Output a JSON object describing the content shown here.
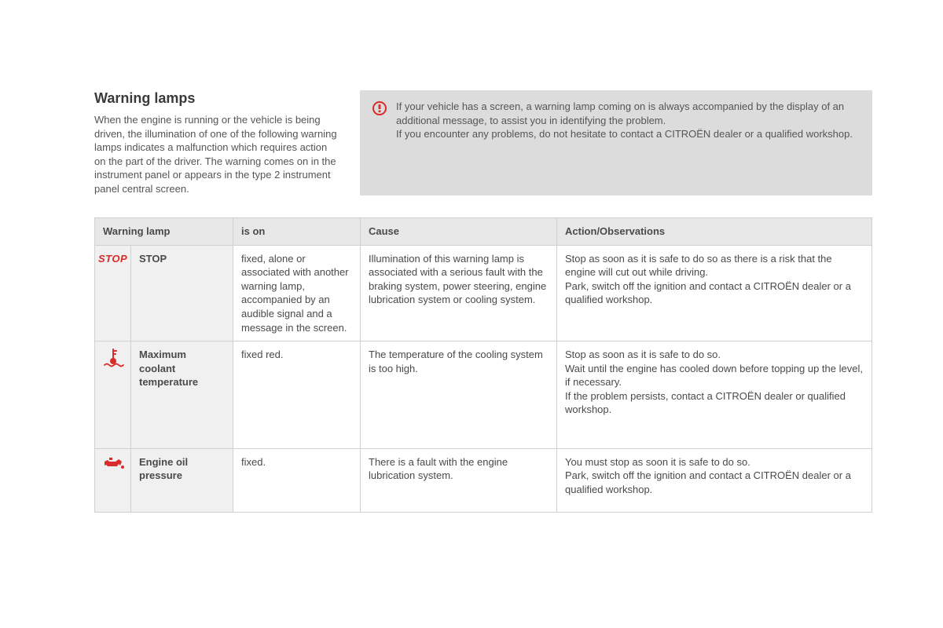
{
  "title": "Warning lamps",
  "intro": "When the engine is running or the vehicle is being driven, the illumination of one of the following warning lamps indicates a malfunction which requires action on the part of the driver. The warning comes on in the instrument panel or appears in the type 2 instrument panel central screen.",
  "info_box": {
    "icon_name": "alert-icon",
    "text": "If your vehicle has a screen, a warning lamp coming on is always accompanied by the display of an additional message, to assist you in identifying the problem.\nIf you encounter any problems, do not hesitate to contact a CITROËN dealer or a qualified workshop."
  },
  "colors": {
    "warning_red": "#d82b2b",
    "header_bg": "#e8e8e8",
    "row_label_bg": "#f0f0f0",
    "border": "#d0d0d0",
    "text": "#4a4a4a",
    "info_bg": "#dcdcdc"
  },
  "table": {
    "headers": {
      "lamp": "Warning lamp",
      "ison": "is on",
      "cause": "Cause",
      "action": "Action/Observations"
    },
    "rows": [
      {
        "icon": "stop",
        "icon_label": "STOP",
        "name": "STOP",
        "ison": "fixed, alone or associated with another warning lamp, accompanied by an audible signal and a message in the screen.",
        "cause": "Illumination of this warning lamp is associated with a serious fault with the braking system, power steering, engine lubrication system or cooling system.",
        "action": "Stop as soon as it is safe to do so as there is a risk that the engine will cut out while driving.\nPark, switch off the ignition and contact a CITROËN dealer or a qualified workshop."
      },
      {
        "icon": "coolant",
        "name": "Maximum coolant temperature",
        "ison": "fixed red.",
        "cause": "The temperature of the cooling system is too high.",
        "action": "Stop as soon as it is safe to do so.\nWait until the engine has cooled down before topping up the level, if necessary.\nIf the problem persists, contact a CITROËN dealer or qualified workshop."
      },
      {
        "icon": "oil",
        "name": "Engine oil pressure",
        "ison": "fixed.",
        "cause": "There is a fault with the engine lubrication system.",
        "action": "You must stop as soon it is safe to do so.\nPark, switch off the ignition and contact a CITROËN dealer or a qualified workshop."
      }
    ]
  }
}
